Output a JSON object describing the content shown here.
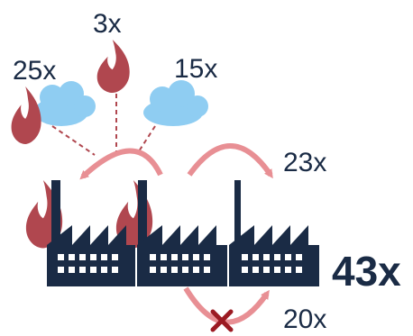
{
  "labels": {
    "flame_top": "3x",
    "flame_left": "25x",
    "cloud_right": "15x",
    "arrow_right": "23x",
    "arrow_bottom": "20x",
    "total": "43x"
  },
  "colors": {
    "factory": "#1a2b45",
    "flame": "#b0474f",
    "cloud": "#8fcdf2",
    "arrow": "#e88f94",
    "cross": "#9b1a22",
    "text": "#1a2b45"
  },
  "icons": {
    "flame": "flame-icon",
    "cloud": "cloud-icon",
    "factory": "factory-icon",
    "cross": "cross-icon"
  }
}
